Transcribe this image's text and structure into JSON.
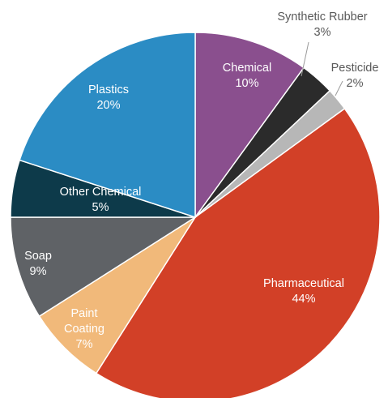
{
  "chart_data": {
    "type": "pie",
    "title": "",
    "slices": [
      {
        "label": "Chemical",
        "value": 10,
        "value_label": "10%",
        "color": "#8a4f8e",
        "text_color": "#ffffff"
      },
      {
        "label": "Synthetic Rubber",
        "value": 3,
        "value_label": "3%",
        "color": "#2b2b2b",
        "text_color": "#595959"
      },
      {
        "label": "Pesticide",
        "value": 2,
        "value_label": "2%",
        "color": "#b7b7b7",
        "text_color": "#595959"
      },
      {
        "label": "Pharmaceutical",
        "value": 44,
        "value_label": "44%",
        "color": "#d24027",
        "text_color": "#ffffff"
      },
      {
        "label": "Paint Coating",
        "value": 7,
        "value_label": "7%",
        "color": "#f1b97a",
        "text_color": "#ffffff"
      },
      {
        "label": "Soap",
        "value": 9,
        "value_label": "9%",
        "color": "#5f6266",
        "text_color": "#ffffff"
      },
      {
        "label": "Other Chemical",
        "value": 5,
        "value_label": "5%",
        "color": "#0d3a4a",
        "text_color": "#ffffff"
      },
      {
        "label": "Plastics",
        "value": 20,
        "value_label": "20%",
        "color": "#2b8cc4",
        "text_color": "#ffffff"
      }
    ]
  }
}
